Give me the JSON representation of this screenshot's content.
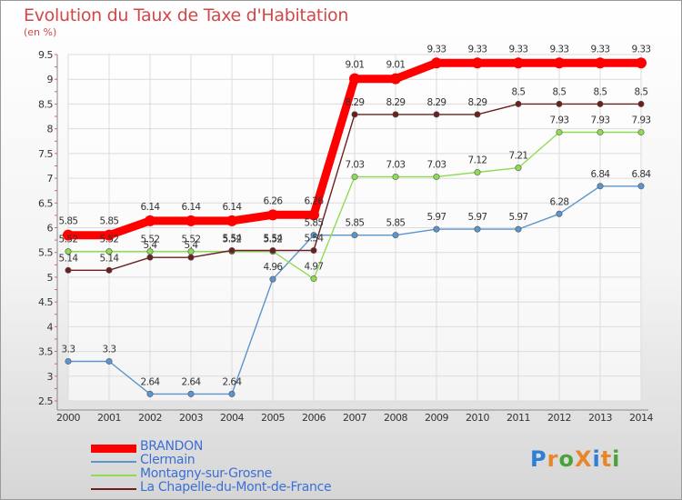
{
  "header": {
    "title": "Evolution du Taux de Taxe d'Habitation",
    "subtitle": "(en %)"
  },
  "logo": {
    "text": "ProXiti",
    "colors": [
      "#2e7dd6",
      "#e8862b",
      "#49a33a",
      "#e8862b",
      "#2e7dd6",
      "#e8862b",
      "#49a33a"
    ]
  },
  "chart_data": {
    "type": "line",
    "title": "Evolution du Taux de Taxe d'Habitation",
    "ylabel": "(en %)",
    "xlabel": "",
    "x": [
      "2000",
      "2001",
      "2002",
      "2003",
      "2004",
      "2005",
      "2006",
      "2007",
      "2008",
      "2009",
      "2010",
      "2011",
      "2012",
      "2013",
      "2014"
    ],
    "ylim": [
      2.5,
      9.5
    ],
    "y_ticks": [
      "2.5",
      "3",
      "3.5",
      "4",
      "4.5",
      "5",
      "5.5",
      "6",
      "6.5",
      "7",
      "7.5",
      "8",
      "8.5",
      "9",
      "9.5"
    ],
    "grid": true,
    "legend_position": "bottom-left",
    "series": [
      {
        "name": "BRANDON",
        "color": "#ff0000",
        "values": [
          5.85,
          5.85,
          6.14,
          6.14,
          6.14,
          6.26,
          6.26,
          9.01,
          9.01,
          9.33,
          9.33,
          9.33,
          9.33,
          9.33,
          9.33
        ],
        "labels": [
          "5.85",
          "5.85",
          "6.14",
          "6.14",
          "6.14",
          "6.26",
          "6.26",
          "9.01",
          "9.01",
          "9.33",
          "9.33",
          "9.33",
          "9.33",
          "9.33",
          "9.33"
        ]
      },
      {
        "name": "Clermain",
        "color": "#5b95cc",
        "values": [
          3.3,
          3.3,
          2.64,
          2.64,
          2.64,
          4.96,
          5.85,
          5.85,
          5.85,
          5.97,
          5.97,
          5.97,
          6.28,
          6.84,
          6.84
        ],
        "labels": [
          "3.3",
          "3.3",
          "2.64",
          "2.64",
          "2.64",
          "4.96",
          "5.85",
          "5.85",
          "5.85",
          "5.97",
          "5.97",
          "5.97",
          "6.28",
          "6.84",
          "6.84"
        ]
      },
      {
        "name": "Montagny-sur-Grosne",
        "color": "#8fdc52",
        "values": [
          5.52,
          5.52,
          5.52,
          5.52,
          5.52,
          5.52,
          4.97,
          7.03,
          7.03,
          7.03,
          7.12,
          7.21,
          7.93,
          7.93,
          7.93
        ],
        "labels": [
          "5.52",
          "5.52",
          "5.52",
          "5.52",
          "5.52",
          "5.52",
          "4.97",
          "7.03",
          "7.03",
          "7.03",
          "7.12",
          "7.21",
          "7.93",
          "7.93",
          "7.93"
        ]
      },
      {
        "name": "La Chapelle-du-Mont-de-France",
        "color": "#6b1f1f",
        "values": [
          5.14,
          5.14,
          5.4,
          5.4,
          5.54,
          5.54,
          5.54,
          8.29,
          8.29,
          8.29,
          8.29,
          8.5,
          8.5,
          8.5,
          8.5
        ],
        "labels": [
          "5.14",
          "5.14",
          "5.4",
          "5.4",
          "5.54",
          "5.54",
          "5.54",
          "8.29",
          "8.29",
          "8.29",
          "8.29",
          "8.5",
          "8.5",
          "8.5",
          "8.5"
        ]
      }
    ]
  }
}
